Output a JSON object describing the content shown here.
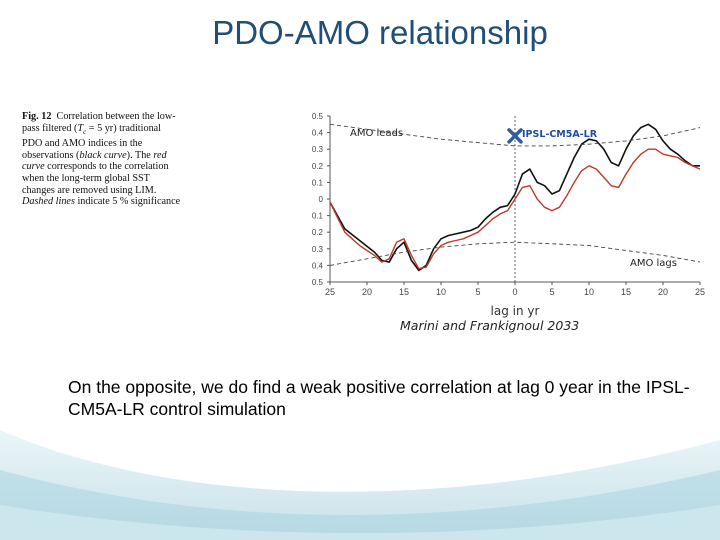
{
  "slide": {
    "title": "PDO-AMO relationship",
    "credit": "Marini and Frankignoul 2033",
    "body": "On the opposite, we do find a weak positive correlation at lag 0 year in the IPSL-CM5A-LR control simulation"
  },
  "caption": {
    "label": "Fig. 12",
    "p1": "Correlation between the low-pass filtered (",
    "tl": "T",
    "tsub": "c",
    "p2": " = 5 yr) traditional PDO and AMO indices in the observations (",
    "black_curve": "black curve",
    "p3": "). The ",
    "red_curve": "red curve",
    "p4": " corresponds to the correlation when the long-term global SST changes are removed using LIM. ",
    "dashed": "Dashed lines",
    "p5": " indicate 5 % significance"
  },
  "colors": {
    "title": "#1f4e79",
    "black_series": "#111111",
    "red_series": "#c0392b",
    "marker": "#2f5d9e",
    "ipsl_label": "#1f4e9e"
  },
  "chart_data": {
    "type": "line",
    "xlabel": "lag in yr",
    "ylim": [
      -0.5,
      0.5
    ],
    "y_ticks": [
      "0.5",
      "0.4",
      "0.3",
      "0.2",
      "0.1",
      "0",
      "0.1",
      "0.2",
      "0.3",
      "0.4",
      "0.5"
    ],
    "y_tick_values": [
      0.5,
      0.4,
      0.3,
      0.2,
      0.1,
      0,
      -0.1,
      -0.2,
      -0.3,
      -0.4,
      -0.5
    ],
    "xlim": [
      -25,
      25
    ],
    "x_ticks": [
      "25",
      "20",
      "15",
      "10",
      "5",
      "0",
      "5",
      "10",
      "15",
      "20",
      "25"
    ],
    "x_tick_values": [
      -25,
      -20,
      -15,
      -10,
      -5,
      0,
      5,
      10,
      15,
      20,
      25
    ],
    "annotations": {
      "amo_leads": "AMO leads",
      "amo_lags": "AMO lags",
      "ipsl": "IPSL-CM5A-LR"
    },
    "marker": {
      "x": 0,
      "y": 0.38
    },
    "series": [
      {
        "style": "solid-black",
        "x": [
          -25,
          -23,
          -21,
          -19,
          -18,
          -17,
          -16,
          -15,
          -14,
          -13,
          -12,
          -11,
          -10,
          -9,
          -8,
          -7,
          -6,
          -5,
          -4,
          -3,
          -2,
          -1,
          0,
          1,
          2,
          3,
          4,
          5,
          6,
          7,
          8,
          9,
          10,
          11,
          12,
          13,
          14,
          15,
          16,
          17,
          18,
          19,
          20,
          21,
          22,
          23,
          24,
          25
        ],
        "y": [
          -0.02,
          -0.18,
          -0.25,
          -0.32,
          -0.37,
          -0.38,
          -0.3,
          -0.26,
          -0.37,
          -0.43,
          -0.4,
          -0.3,
          -0.24,
          -0.22,
          -0.21,
          -0.2,
          -0.19,
          -0.17,
          -0.12,
          -0.08,
          -0.05,
          -0.04,
          0.03,
          0.15,
          0.18,
          0.1,
          0.08,
          0.03,
          0.05,
          0.15,
          0.25,
          0.33,
          0.36,
          0.35,
          0.3,
          0.22,
          0.2,
          0.3,
          0.38,
          0.43,
          0.45,
          0.42,
          0.35,
          0.3,
          0.27,
          0.23,
          0.2,
          0.2
        ]
      },
      {
        "style": "solid-red",
        "x": [
          -25,
          -23,
          -21,
          -19,
          -18,
          -17,
          -16,
          -15,
          -14,
          -13,
          -12,
          -11,
          -10,
          -9,
          -8,
          -7,
          -6,
          -5,
          -4,
          -3,
          -2,
          -1,
          0,
          1,
          2,
          3,
          4,
          5,
          6,
          7,
          8,
          9,
          10,
          11,
          12,
          13,
          14,
          15,
          16,
          17,
          18,
          19,
          20,
          21,
          22,
          23,
          24,
          25
        ],
        "y": [
          -0.02,
          -0.2,
          -0.28,
          -0.34,
          -0.38,
          -0.36,
          -0.26,
          -0.24,
          -0.34,
          -0.42,
          -0.41,
          -0.33,
          -0.28,
          -0.26,
          -0.25,
          -0.24,
          -0.22,
          -0.2,
          -0.16,
          -0.12,
          -0.09,
          -0.07,
          0.0,
          0.07,
          0.08,
          0.0,
          -0.05,
          -0.07,
          -0.05,
          0.02,
          0.1,
          0.17,
          0.2,
          0.18,
          0.13,
          0.08,
          0.07,
          0.15,
          0.22,
          0.27,
          0.3,
          0.3,
          0.27,
          0.26,
          0.25,
          0.22,
          0.2,
          0.18
        ]
      },
      {
        "style": "dashed-upper",
        "x": [
          -25,
          -20,
          -15,
          -10,
          -5,
          0,
          5,
          10,
          15,
          20,
          25
        ],
        "y": [
          0.45,
          0.42,
          0.39,
          0.36,
          0.34,
          0.32,
          0.32,
          0.33,
          0.35,
          0.38,
          0.43
        ]
      },
      {
        "style": "dashed-lower",
        "x": [
          -25,
          -20,
          -15,
          -10,
          -5,
          0,
          5,
          10,
          15,
          20,
          25
        ],
        "y": [
          -0.4,
          -0.36,
          -0.32,
          -0.29,
          -0.27,
          -0.26,
          -0.27,
          -0.28,
          -0.31,
          -0.34,
          -0.38
        ]
      }
    ]
  }
}
